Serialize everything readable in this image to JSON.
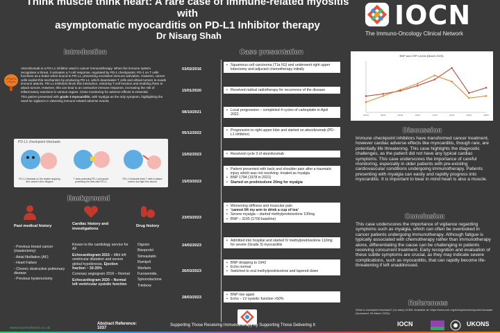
{
  "poster": {
    "title_line1": "Think muscle think heart: A rare case of immune-related myositis with",
    "title_line2": "asymptomatic myocarditis on PD-L1 Inhibitor therapy",
    "author": "Dr Nisarg Shah"
  },
  "logo": {
    "brand": "IOCN",
    "subtitle": "The Immuno-Oncology Clinical Network"
  },
  "sections": {
    "introduction": "Introduction",
    "case_presentation": "Case presentation",
    "background": "Background",
    "discussion": "Discussion",
    "conclusion": "Conclusion",
    "references": "References"
  },
  "introduction": {
    "para1": "Atezolizumab is a PD-L1 inhibitor used in cancer immunotherapy. When the immune system recognises a threat, it activates a T-cell response, regulated by PD-1 checkpoints. PD-1 on T cells functions as a brake when bound to PD-L1, preventing excessive immune activation. However, cancer cells exploit this mechanism by producing PD-L1, which deactivates T cells and allows tumors to evade immune attacks. PD-L1 inhibitors block this interaction, restoring T-cell function and enabling them to attack tumors. However, this can lead to an overactive immune response, increasing the risk of inflammatory reactions in various organs. Close monitoring for adverse effects is essential.",
    "para2_a": "This patient presented with ",
    "para2_b": "grade 3 myocarditis",
    "para2_c": ", with myalgia as the only symptom, highlighting the need for vigilance in detecting immune-related adverse events."
  },
  "cartoon": {
    "caption": "PD-L1 checkpoint blockade",
    "panel1": "PD-L1 blockade on the bubble stopping firm cancer's firm villagers",
    "panel2": "T cells protecting PD-1 and guard protecting the cells with PD-L1",
    "panel3": "PD-L1 blockade frees T cells to attack cancer and fight firm cancer"
  },
  "background": {
    "col1_head": "Past medical history",
    "col2_head": "Cardiac history and investigations",
    "col3_head": "Drug history",
    "pmh": [
      "- Previous breast cancer (mastectomy)",
      "- Atrial fibrillation (AF)",
      "- Heart Failure",
      "- Chronic obstructive pulmonary disease",
      "- Previous hysterectomy"
    ],
    "cardiac1": "Known to the cardiology service for AF",
    "cardiac2_b": "Echocardiogram 2015 –",
    "cardiac2_t": " Mild left ventricular dilatation and severe global hypokinesia. ",
    "cardiac2_b2": "Ejection fraction ~ 30-35%",
    "cardiac3": "Coronary angiogram 2016 – Normal",
    "cardiac4": "Echocardiogram 2020 – Normal left ventricular systolic function",
    "drugs": [
      "Digoxin",
      "Bisoprolol",
      "Simvastatin",
      "Ramipril",
      "Warfarin",
      "Furosemide,",
      "Spironolactone",
      "Trimbow"
    ]
  },
  "timeline": [
    {
      "date": "03/02/2016",
      "items": [
        "Squamous cell carcinoma (T1a N1) and underwent right upper lobectomy and adjuvant chemotherapy initially"
      ]
    },
    {
      "date": "15/01/2020",
      "items": [
        "Received radical radiotherapy for recurrence of the disease"
      ]
    },
    {
      "date": "08/10/2021",
      "items": [
        "Local progression – completed 4 cycles of carboplatin in April 2022."
      ]
    },
    {
      "date": "05/12/2022",
      "items": [
        "Progression to right upper lobe and started on atezolizumab (PD-L1 inhibitor)"
      ]
    },
    {
      "date": "15/02/2023",
      "items": [
        "Received cycle 3 of atezolizumab"
      ]
    },
    {
      "date": "15/03/2023",
      "items": [
        "Patient presented with back and shoulder pain after a traumatic injury which was not resolving- treated as myalgia",
        "BNP 1794 (1978 in 2021)",
        "Started on prednisolone 20mg for myalgia"
      ]
    },
    {
      "date": "23/03/2023",
      "items": [
        "Worsening stiffness and muscular pain",
        "'cannot lift my arm to drink a cup of tea'",
        "Severe myalgia – started methylprednisolone 100mg",
        "BNP – 3165 (1700 baseline)"
      ]
    },
    {
      "date": "24/02/2023",
      "items": [
        "Admitted into hospital and started IV methylprednisolone 110mg for severe (Grade 3) myocarditis"
      ]
    },
    {
      "date": "26/03/2023",
      "items": [
        "BNP dropping to 1943",
        "Echo normal",
        "Switched to oral methylprednisolone and tapered down"
      ]
    },
    {
      "date": "28/03/2023",
      "items": [
        "BNP rise again",
        "Echo – LV systolic function >50%"
      ]
    }
  ],
  "chart_data": {
    "type": "line",
    "title": "BNP and CRP Levels (March 2023)",
    "x": [
      "01/03",
      "05/03",
      "09/03",
      "13/03",
      "17/03",
      "21/03",
      "25/03",
      "29/03"
    ],
    "series": [
      {
        "name": "BNP",
        "values": [
          1794,
          1900,
          2050,
          2300,
          2600,
          3165,
          1943,
          2200
        ],
        "color": "#c0392b"
      },
      {
        "name": "CRP",
        "values": [
          1500,
          1800,
          2100,
          2400,
          2800,
          2500,
          1700,
          1800
        ],
        "color": "#e67e22"
      }
    ],
    "ylim": [
      1000,
      3500
    ]
  },
  "discussion": {
    "text": "Immune checkpoint inhibitors have transformed cancer treatment, however cardiac adverse effects like myocarditis, though rare, are potentially life threatening. This case highlights the diagnostic challenges, as the patient did not have any typical cardiac symptoms. This case underscores the importance of careful monitoring, especially in older patients with pre-existing cardiovascular conditions undergoing immunotherapy. Patients presenting with myalgia can easily and rapidly progress into myocarditis. It is important to bear in mind heart is also a muscle."
  },
  "conclusion": {
    "text": "This case underscores the importance of vigilance regarding symptoms such as myalgia, which can often be overlooked in cancer patients undergoing immunotherapy. Although fatigue is typically associated with chemotherapy rather than immunotherapy alone, differentiating the cause can be challenging in patients receiving concurrent treatment. Early recognition and evaluation of these subtle symptoms are crucial, as they may indicate severe complications, such as myocarditis, that can rapidly become life-threatening if left unaddressed."
  },
  "references": {
    "text": "What is checkpoint blockade? (no date) UCBN. Available at: https://www.ucb.org/therapies/checkpoint-blockade (Accessed: 09 March 2025)."
  },
  "footer": {
    "website": "www.iocninetwork.co.uk",
    "abstract_label": "Abstract Reference:",
    "abstract_number": "1037",
    "tagline": "Supporting Those Receiving Immunotherapy by Supporting Those Delivering It",
    "partner1": "IOCN",
    "partner2": "UKONS"
  },
  "colors": {
    "background": "#3a3a3a",
    "accent_red": "#c0392b",
    "chart_line": "#d35400"
  }
}
